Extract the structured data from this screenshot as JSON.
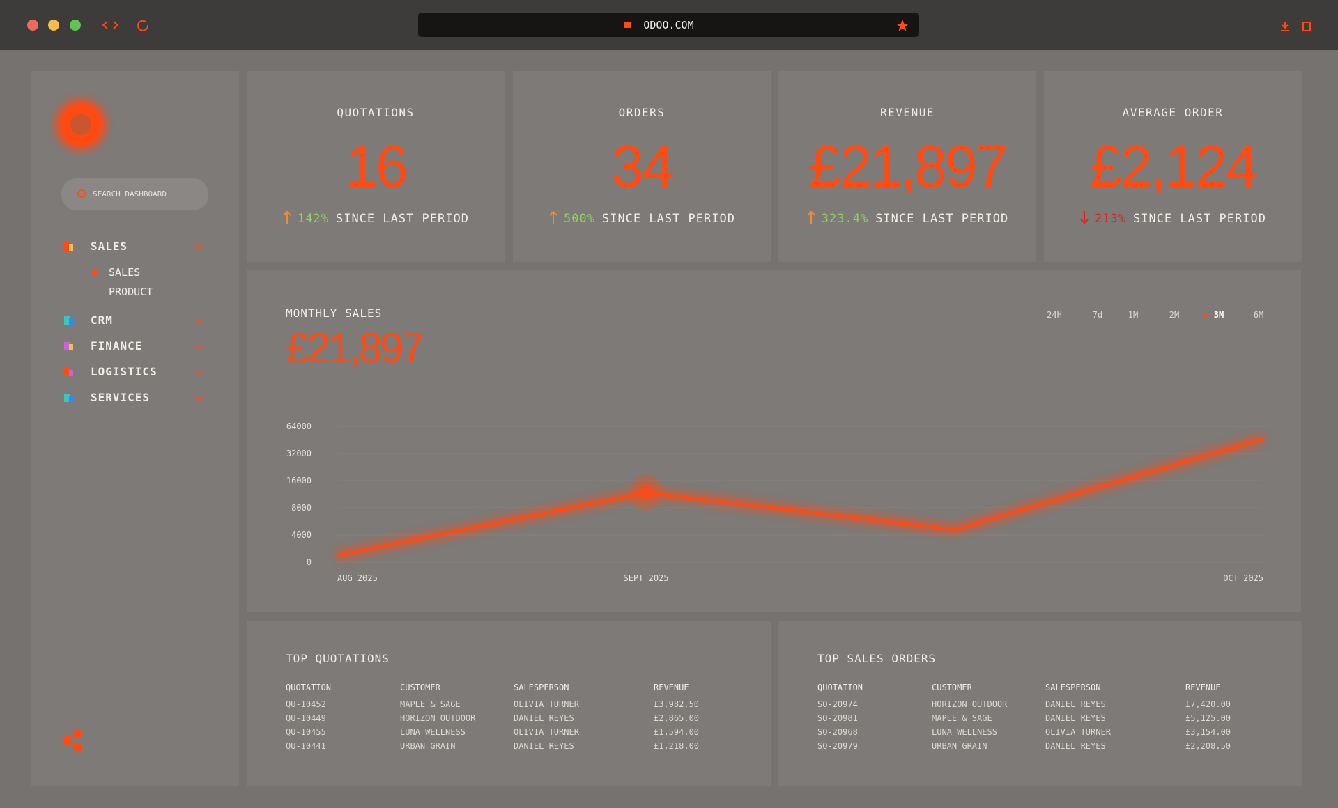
{
  "browser": {
    "url": "ODOO.COM"
  },
  "sidebar": {
    "search_placeholder": "SEARCH DASHBOARD",
    "nav": [
      {
        "label": "SALES",
        "children": [
          "SALES",
          "PRODUCT"
        ]
      },
      {
        "label": "CRM"
      },
      {
        "label": "FINANCE"
      },
      {
        "label": "LOGISTICS"
      },
      {
        "label": "SERVICES"
      }
    ]
  },
  "kpis": [
    {
      "title": "QUOTATIONS",
      "value": "16",
      "trend": "up",
      "change": "142%",
      "note": "SINCE LAST PERIOD"
    },
    {
      "title": "ORDERS",
      "value": "34",
      "trend": "up",
      "change": "500%",
      "note": "SINCE LAST PERIOD"
    },
    {
      "title": "REVENUE",
      "value": "£21,897",
      "trend": "up",
      "change": "323.4%",
      "note": "SINCE LAST PERIOD"
    },
    {
      "title": "AVERAGE ORDER",
      "value": "£2,124",
      "trend": "down",
      "change": "213%",
      "note": "SINCE LAST PERIOD"
    }
  ],
  "chart_data": {
    "type": "line",
    "title": "MONTHLY SALES",
    "headline": "£21,897",
    "ranges": [
      "24H",
      "7d",
      "1M",
      "2M",
      "3M",
      "6M"
    ],
    "active_range": "3M",
    "categories": [
      "AUG 2025",
      "SEPT 2025",
      null,
      "OCT 2025"
    ],
    "values": [
      1000,
      12500,
      4800,
      49500
    ],
    "color": "#ff4a12",
    "ylim": [
      0,
      64000
    ],
    "yticks": [
      0,
      4000,
      8000,
      16000,
      32000,
      64000
    ],
    "grid": true
  },
  "top_quotations": {
    "title": "TOP QUOTATIONS",
    "columns": [
      "QUOTATION",
      "CUSTOMER",
      "SALESPERSON",
      "REVENUE"
    ],
    "rows": [
      [
        "QU-10452",
        "MAPLE & SAGE",
        "OLIVIA TURNER",
        "£3,982.50"
      ],
      [
        "QU-10449",
        "HORIZON OUTDOOR",
        "DANIEL REYES",
        "£2,865.00"
      ],
      [
        "QU-10455",
        "LUNA WELLNESS",
        "OLIVIA TURNER",
        "£1,594.00"
      ],
      [
        "QU-10441",
        "URBAN GRAIN",
        "DANIEL REYES",
        "£1,218.00"
      ]
    ]
  },
  "top_sales_orders": {
    "title": "TOP SALES ORDERS",
    "columns": [
      "QUOTATION",
      "CUSTOMER",
      "SALESPERSON",
      "REVENUE"
    ],
    "rows": [
      [
        "SO-20974",
        "HORIZON OUTDOOR",
        "DANIEL REYES",
        "£7,420.00"
      ],
      [
        "SO-20981",
        "MAPLE & SAGE",
        "DANIEL REYES",
        "£5,125.00"
      ],
      [
        "SO-20968",
        "LUNA WELLNESS",
        "OLIVIA TURNER",
        "£3,154.00"
      ],
      [
        "SO-20979",
        "URBAN GRAIN",
        "DANIEL REYES",
        "£2,208.50"
      ]
    ]
  }
}
